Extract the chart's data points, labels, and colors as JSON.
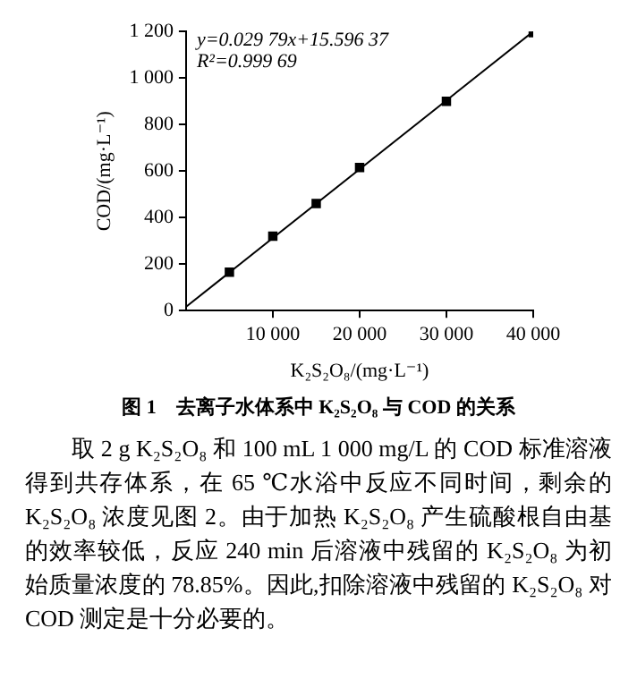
{
  "chart_data": {
    "type": "scatter",
    "title": "图 1　去离子水体系中 K₂S₂O₈ 与 COD 的关系",
    "xlabel": "K₂S₂O₈/(mg·L⁻¹)",
    "ylabel": "COD/(mg·L⁻¹)",
    "series": [
      {
        "type": "scatter",
        "color": "#000000",
        "marker": "square",
        "x": [
          5000,
          10000,
          15000,
          20000,
          30000,
          40000
        ],
        "values": [
          165,
          320,
          460,
          615,
          900,
          1195
        ]
      },
      {
        "type": "line",
        "color": "#000000",
        "marker": "none",
        "x": [
          0,
          40000
        ],
        "values": [
          16,
          1200
        ]
      }
    ],
    "xlim": [
      0,
      40000
    ],
    "ylim": [
      0,
      1200
    ],
    "xticks": [
      {
        "value": 10000,
        "label": "10 000"
      },
      {
        "value": 20000,
        "label": "20 000"
      },
      {
        "value": 30000,
        "label": "30 000"
      },
      {
        "value": 40000,
        "label": "40 000"
      }
    ],
    "yticks": [
      0,
      200,
      400,
      600,
      800,
      {
        "value": 1000,
        "label": "1 000"
      },
      {
        "value": 1200,
        "label": "1 200"
      }
    ],
    "grid": false,
    "legend": false,
    "annotations": [
      "y=0.029 79x+15.596 37",
      "R²=0.999 69",
      "取 2 g K₂S₂O₈ 和 100 mL 1 000 mg/L 的 COD 标准溶液得到共存体系，在 65 ℃水浴中反应不同时间，剩余的 K₂S₂O₈ 浓度见图 2。由于加热 K₂S₂O₈ 产生硫酸根自由基的效率较低，反应 240 min 后溶液中残留的 K₂S₂O₈ 为初始质量浓度的 78.85%。因此,扣除溶液中残留的 K₂S₂O₈ 对 COD 测定是十分必要的。"
    ]
  }
}
